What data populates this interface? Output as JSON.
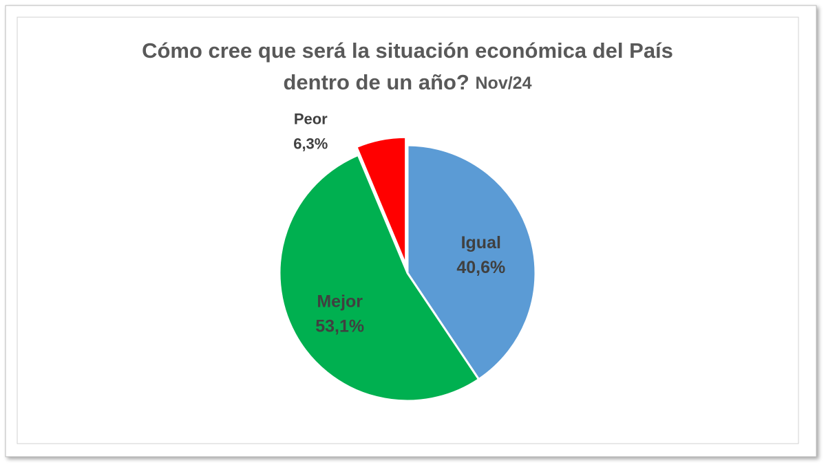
{
  "chart_data": {
    "type": "pie",
    "title": [
      "Cómo cree que será la situación económica del País",
      "dentro de un año?"
    ],
    "subtitle": "Nov/24",
    "categories": [
      "Igual",
      "Mejor",
      "Peor"
    ],
    "values": [
      40.6,
      53.1,
      6.3
    ],
    "value_labels": [
      "40,6%",
      "53,1%",
      "6,3%"
    ],
    "colors": [
      "#5b9bd5",
      "#00b050",
      "#ff0000"
    ]
  }
}
